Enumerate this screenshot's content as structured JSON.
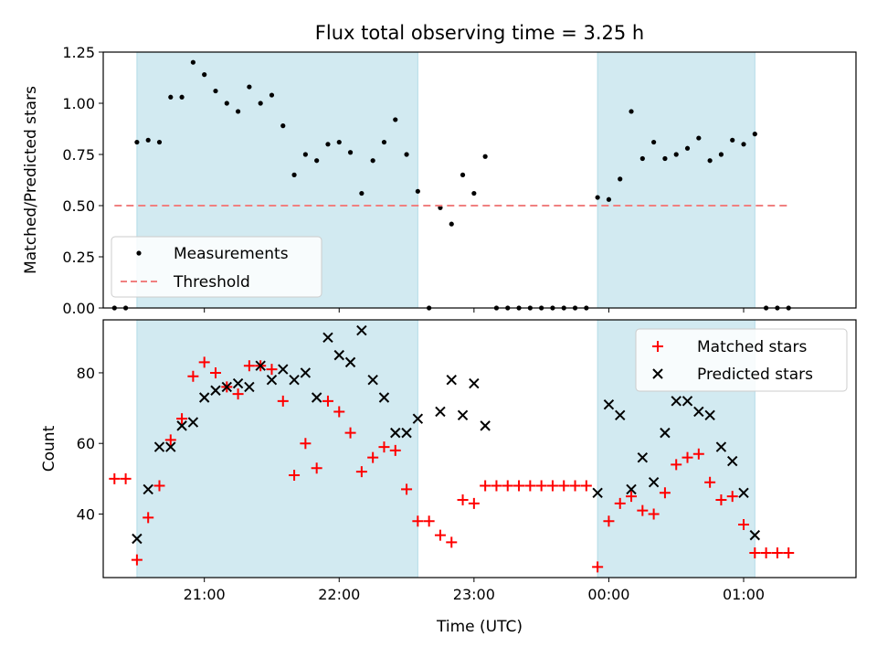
{
  "chart_data": [
    {
      "type": "scatter",
      "title": "Flux total observing time = 3.25 h",
      "ylabel": "Matched/Predicted stars",
      "xlim": [
        "20:15",
        "01:50"
      ],
      "ylim": [
        0,
        1.25
      ],
      "yticks": [
        0,
        0.25,
        0.5,
        0.75,
        1.0,
        1.25
      ],
      "ytick_labels": [
        "0.00",
        "0.25",
        "0.50",
        "0.75",
        "1.00",
        "1.25"
      ],
      "shaded_spans": [
        [
          "20:30",
          "22:35"
        ],
        [
          "23:55",
          "01:05"
        ]
      ],
      "shade_color": "#add8e6",
      "legend_position": "lower-left",
      "series": [
        {
          "name": "Measurements",
          "marker": "dot",
          "color": "#000000",
          "x": [
            "20:20",
            "20:25",
            "20:30",
            "20:35",
            "20:40",
            "20:45",
            "20:50",
            "20:55",
            "21:00",
            "21:05",
            "21:10",
            "21:15",
            "21:20",
            "21:25",
            "21:30",
            "21:35",
            "21:40",
            "21:45",
            "21:50",
            "21:55",
            "22:00",
            "22:05",
            "22:10",
            "22:15",
            "22:20",
            "22:25",
            "22:30",
            "22:35",
            "22:40",
            "22:45",
            "22:50",
            "22:55",
            "23:00",
            "23:05",
            "23:10",
            "23:15",
            "23:20",
            "23:25",
            "23:30",
            "23:35",
            "23:40",
            "23:45",
            "23:50",
            "23:55",
            "24:00",
            "24:05",
            "24:10",
            "24:15",
            "24:20",
            "24:25",
            "24:30",
            "24:35",
            "24:40",
            "24:45",
            "24:50",
            "24:55",
            "25:00",
            "25:05",
            "25:10",
            "25:15",
            "25:20"
          ],
          "y": [
            0,
            0,
            0.81,
            0.82,
            0.81,
            1.03,
            1.03,
            1.2,
            1.14,
            1.06,
            1.0,
            0.96,
            1.08,
            1.0,
            1.04,
            0.89,
            0.65,
            0.75,
            0.72,
            0.8,
            0.81,
            0.76,
            0.56,
            0.72,
            0.81,
            0.92,
            0.75,
            0.57,
            0.0,
            0.49,
            0.41,
            0.65,
            0.56,
            0.74,
            0,
            0,
            0,
            0,
            0,
            0,
            0,
            0,
            0,
            0.54,
            0.53,
            0.63,
            0.96,
            0.73,
            0.81,
            0.73,
            0.75,
            0.78,
            0.83,
            0.72,
            0.75,
            0.82,
            0.8,
            0.85,
            0,
            0,
            0
          ]
        },
        {
          "name": "Threshold",
          "style": "dashed",
          "color": "#f08080",
          "x": [
            "20:20",
            "25:20"
          ],
          "y": [
            0.5,
            0.5
          ]
        }
      ]
    },
    {
      "type": "scatter",
      "xlabel": "Time (UTC)",
      "ylabel": "Count",
      "xlim": [
        "20:15",
        "01:50"
      ],
      "ylim": [
        22,
        95
      ],
      "yticks": [
        40,
        60,
        80
      ],
      "ytick_labels": [
        "40",
        "60",
        "80"
      ],
      "xticks": [
        "21:00",
        "22:00",
        "23:00",
        "24:00",
        "25:00"
      ],
      "xtick_labels": [
        "21:00",
        "22:00",
        "23:00",
        "00:00",
        "01:00"
      ],
      "shaded_spans": [
        [
          "20:30",
          "22:35"
        ],
        [
          "23:55",
          "01:05"
        ]
      ],
      "shade_color": "#add8e6",
      "legend_position": "upper-right",
      "series": [
        {
          "name": "Matched stars",
          "marker": "plus",
          "color": "#ff0000",
          "x": [
            "20:20",
            "20:25",
            "20:30",
            "20:35",
            "20:40",
            "20:45",
            "20:50",
            "20:55",
            "21:00",
            "21:05",
            "21:10",
            "21:15",
            "21:20",
            "21:25",
            "21:30",
            "21:35",
            "21:40",
            "21:45",
            "21:50",
            "21:55",
            "22:00",
            "22:05",
            "22:10",
            "22:15",
            "22:20",
            "22:25",
            "22:30",
            "22:35",
            "22:40",
            "22:45",
            "22:50",
            "22:55",
            "23:00",
            "23:05",
            "23:10",
            "23:15",
            "23:20",
            "23:25",
            "23:30",
            "23:35",
            "23:40",
            "23:45",
            "23:50",
            "23:55",
            "24:00",
            "24:05",
            "24:10",
            "24:15",
            "24:20",
            "24:25",
            "24:30",
            "24:35",
            "24:40",
            "24:45",
            "24:50",
            "24:55",
            "25:00",
            "25:05",
            "25:10",
            "25:15",
            "25:20"
          ],
          "y": [
            50,
            50,
            27,
            39,
            48,
            61,
            67,
            79,
            83,
            80,
            76,
            74,
            82,
            82,
            81,
            72,
            51,
            60,
            53,
            72,
            69,
            63,
            52,
            56,
            59,
            58,
            47,
            38,
            38,
            34,
            32,
            44,
            43,
            48,
            48,
            48,
            48,
            48,
            48,
            48,
            48,
            48,
            48,
            25,
            38,
            43,
            45,
            41,
            40,
            46,
            54,
            56,
            57,
            49,
            44,
            45,
            37,
            29,
            29,
            29,
            29
          ]
        },
        {
          "name": "Predicted stars",
          "marker": "x",
          "color": "#000000",
          "x": [
            "20:30",
            "20:35",
            "20:40",
            "20:45",
            "20:50",
            "20:55",
            "21:00",
            "21:05",
            "21:10",
            "21:15",
            "21:20",
            "21:25",
            "21:30",
            "21:35",
            "21:40",
            "21:45",
            "21:50",
            "21:55",
            "22:00",
            "22:05",
            "22:10",
            "22:15",
            "22:20",
            "22:25",
            "22:30",
            "22:35",
            "22:45",
            "22:50",
            "22:55",
            "23:00",
            "23:05",
            "23:55",
            "24:00",
            "24:05",
            "24:10",
            "24:15",
            "24:20",
            "24:25",
            "24:30",
            "24:35",
            "24:40",
            "24:45",
            "24:50",
            "24:55",
            "25:00",
            "25:05"
          ],
          "y": [
            33,
            47,
            59,
            59,
            65,
            66,
            73,
            75,
            76,
            77,
            76,
            82,
            78,
            81,
            78,
            80,
            73,
            90,
            85,
            83,
            92,
            78,
            73,
            63,
            63,
            67,
            69,
            78,
            68,
            77,
            65,
            46,
            71,
            68,
            47,
            56,
            49,
            63,
            72,
            72,
            69,
            68,
            59,
            55,
            46,
            34
          ]
        }
      ]
    }
  ]
}
